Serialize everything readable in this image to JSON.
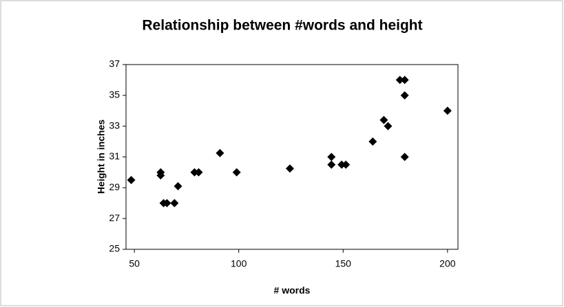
{
  "chart_data": {
    "type": "scatter",
    "title": "Relationship between #words and height",
    "xlabel": "# words",
    "ylabel": "Height in inches",
    "x": [
      48.5,
      62.6,
      62.6,
      64,
      65.6,
      69.2,
      70.9,
      78.8,
      80.8,
      91,
      99,
      124.5,
      144.4,
      144.4,
      149.3,
      151.3,
      164.2,
      169.5,
      171.5,
      177.2,
      179.5,
      179.5,
      179.5,
      200
    ],
    "values": [
      29.5,
      30,
      29.8,
      28,
      28,
      28,
      29.1,
      30,
      30,
      31.25,
      30,
      30.25,
      31,
      30.5,
      30.5,
      30.5,
      32,
      33.4,
      33,
      36,
      36,
      35,
      31,
      34
    ],
    "color": "#000000",
    "xlim": [
      46,
      205
    ],
    "xticks": [
      50,
      100,
      150,
      200
    ],
    "ylim": [
      25,
      37
    ],
    "yticks": [
      25,
      27,
      29,
      31,
      33,
      35,
      37
    ]
  }
}
